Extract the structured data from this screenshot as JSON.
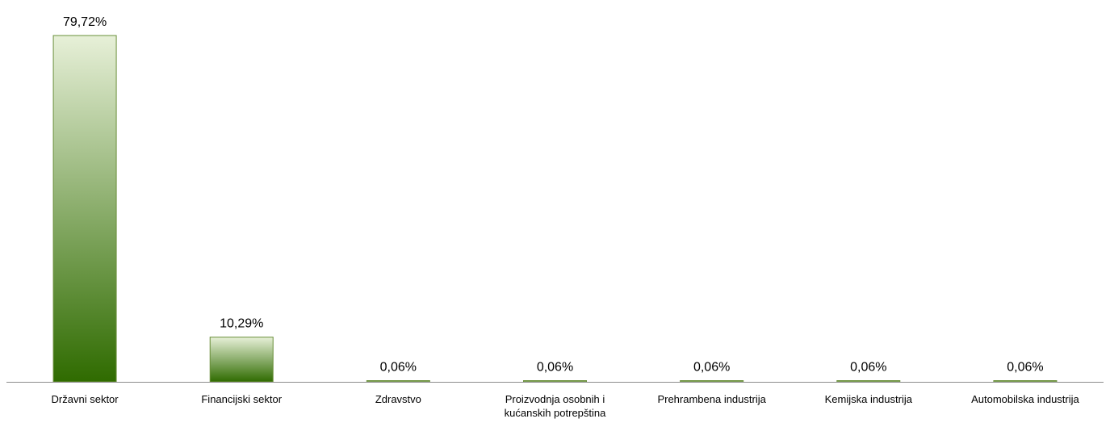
{
  "chart_data": {
    "type": "bar",
    "categories": [
      "Državni sektor",
      "Financijski sektor",
      "Zdravstvo",
      "Proizvodnja osobnih i kućanskih potrepština",
      "Prehrambena industrija",
      "Kemijska industrija",
      "Automobilska industrija"
    ],
    "category_lines": [
      [
        "Državni sektor"
      ],
      [
        "Financijski sektor"
      ],
      [
        "Zdravstvo"
      ],
      [
        "Proizvodnja osobnih i",
        "kućanskih potrepština"
      ],
      [
        "Prehrambena industrija"
      ],
      [
        "Kemijska industrija"
      ],
      [
        "Automobilska industrija"
      ]
    ],
    "values": [
      79.72,
      10.29,
      0.06,
      0.06,
      0.06,
      0.06,
      0.06
    ],
    "value_labels": [
      "79,72%",
      "10,29%",
      "0,06%",
      "0,06%",
      "0,06%",
      "0,06%",
      "0,06%"
    ],
    "title": "",
    "xlabel": "",
    "ylabel": "",
    "ylim": [
      0,
      80
    ],
    "grid": false,
    "legend": "none",
    "colors": {
      "bar_top": "#e7f0d8",
      "bar_bottom": "#2f6b00",
      "bar_border": "#6a8f3a",
      "axis": "#8c8c8c"
    }
  }
}
